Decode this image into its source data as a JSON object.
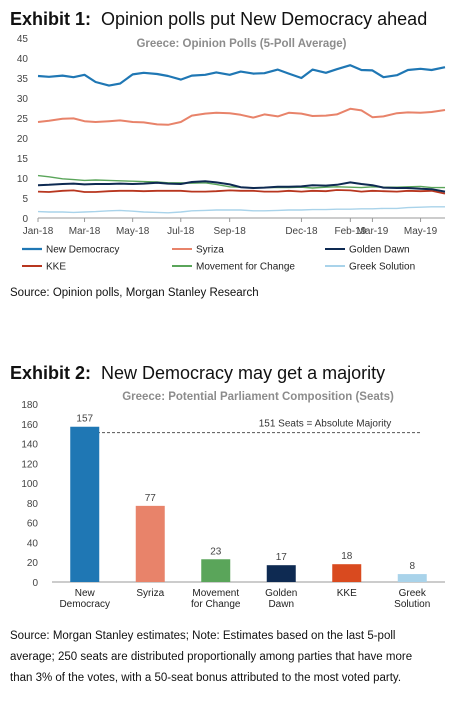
{
  "exhibit1": {
    "label": "Exhibit 1:",
    "heading": "Opinion polls put New Democracy ahead",
    "source": "Source: Opinion polls, Morgan Stanley Research"
  },
  "exhibit2": {
    "label": "Exhibit 2:",
    "heading": "New Democracy may get a majority",
    "source_lines": [
      "Source: Morgan Stanley estimates; Note: Estimates based on the last 5-poll",
      "average; 250 seats are distributed proportionally among parties that have more",
      "than 3% of the votes, with a 50-seat bonus attributed to the most voted party."
    ]
  },
  "chart_data": [
    {
      "type": "line",
      "title": "Greece: Opinion Polls (5-Poll Average)",
      "ylim": [
        0,
        45
      ],
      "yticks": [
        0,
        5,
        10,
        15,
        20,
        25,
        30,
        35,
        40,
        45
      ],
      "xlim": [
        "2018-01-01",
        "2019-06-01"
      ],
      "xtick_labels": [
        {
          "date": "2018-01-01",
          "label": "Jan-18"
        },
        {
          "date": "2018-03-01",
          "label": "Mar-18"
        },
        {
          "date": "2018-05-01",
          "label": "May-18"
        },
        {
          "date": "2018-07-01",
          "label": "Jul-18"
        },
        {
          "date": "2018-09-01",
          "label": "Sep-18"
        },
        {
          "date": "2018-12-01",
          "label": "Dec-18"
        },
        {
          "date": "2019-02-01",
          "label": "Feb-19"
        },
        {
          "date": "2019-03-01",
          "label": "Mar-19"
        },
        {
          "date": "2019-05-01",
          "label": "May-19"
        }
      ],
      "x": [
        "2018-01-01",
        "2018-01-15",
        "2018-02-01",
        "2018-02-15",
        "2018-03-01",
        "2018-03-15",
        "2018-04-01",
        "2018-04-15",
        "2018-05-01",
        "2018-05-15",
        "2018-06-01",
        "2018-06-15",
        "2018-07-01",
        "2018-07-15",
        "2018-08-01",
        "2018-08-15",
        "2018-09-01",
        "2018-09-15",
        "2018-10-01",
        "2018-10-15",
        "2018-11-01",
        "2018-11-15",
        "2018-12-01",
        "2018-12-15",
        "2019-01-01",
        "2019-01-15",
        "2019-02-01",
        "2019-02-15",
        "2019-03-01",
        "2019-03-15",
        "2019-04-01",
        "2019-04-15",
        "2019-05-01",
        "2019-05-15",
        "2019-06-01"
      ],
      "series": [
        {
          "name": "New Democracy",
          "color": "#1f77b4",
          "width": 2.2,
          "values": [
            35.5,
            35.3,
            35.6,
            35.2,
            35.8,
            34.0,
            33.1,
            33.6,
            35.9,
            36.3,
            36.0,
            35.5,
            34.6,
            35.6,
            35.8,
            36.4,
            35.8,
            36.6,
            36.1,
            36.2,
            37.1,
            36.1,
            35.0,
            37.1,
            36.3,
            37.2,
            38.2,
            37.0,
            36.9,
            35.2,
            35.7,
            37.0,
            37.3,
            37.0,
            37.7
          ]
        },
        {
          "name": "Syriza",
          "color": "#e8836a",
          "width": 2.0,
          "values": [
            24.0,
            24.3,
            24.8,
            24.9,
            24.2,
            24.0,
            24.2,
            24.4,
            24.0,
            23.9,
            23.4,
            23.3,
            24.0,
            25.6,
            26.1,
            26.3,
            26.2,
            25.8,
            25.1,
            25.9,
            25.4,
            26.3,
            26.1,
            25.5,
            25.6,
            25.9,
            27.3,
            26.9,
            25.2,
            25.4,
            26.2,
            26.4,
            26.3,
            26.5,
            27.0
          ]
        },
        {
          "name": "Golden Dawn",
          "color": "#0e2a52",
          "width": 2.0,
          "values": [
            8.2,
            8.3,
            8.5,
            8.6,
            8.4,
            8.5,
            8.5,
            8.6,
            8.5,
            8.6,
            8.8,
            8.6,
            8.5,
            9.0,
            9.2,
            8.9,
            8.4,
            7.7,
            7.5,
            7.6,
            7.8,
            7.8,
            7.9,
            8.2,
            8.1,
            8.3,
            8.9,
            8.5,
            8.2,
            7.6,
            7.5,
            7.5,
            7.3,
            7.2,
            6.6
          ]
        },
        {
          "name": "KKE",
          "color": "#b8361f",
          "width": 1.8,
          "values": [
            6.6,
            6.5,
            6.8,
            6.9,
            6.5,
            6.5,
            6.7,
            6.8,
            6.8,
            6.7,
            6.8,
            6.8,
            6.8,
            6.6,
            6.6,
            6.7,
            6.9,
            6.8,
            6.8,
            6.6,
            6.6,
            6.8,
            6.6,
            6.8,
            6.7,
            7.0,
            6.9,
            6.6,
            6.8,
            6.7,
            6.6,
            6.8,
            6.7,
            6.8,
            6.1
          ]
        },
        {
          "name": "Movement for Change",
          "color": "#5aa55a",
          "width": 1.4,
          "values": [
            10.6,
            10.3,
            9.8,
            9.6,
            9.4,
            9.5,
            9.4,
            9.3,
            9.2,
            9.1,
            9.0,
            8.8,
            8.8,
            8.7,
            8.8,
            8.4,
            7.8,
            7.7,
            7.5,
            7.6,
            7.6,
            7.6,
            7.7,
            7.5,
            7.7,
            7.8,
            7.7,
            7.6,
            7.8,
            7.7,
            7.7,
            7.8,
            7.9,
            7.6,
            7.6
          ]
        },
        {
          "name": "Greek Solution",
          "color": "#a9d3ea",
          "width": 1.4,
          "values": [
            1.6,
            1.5,
            1.5,
            1.4,
            1.5,
            1.6,
            1.8,
            1.9,
            1.7,
            1.5,
            1.4,
            1.3,
            1.5,
            1.8,
            1.9,
            2.0,
            2.0,
            2.0,
            1.8,
            1.8,
            1.9,
            2.0,
            2.0,
            2.1,
            2.1,
            2.2,
            2.2,
            2.3,
            2.3,
            2.4,
            2.4,
            2.6,
            2.7,
            2.8,
            2.8
          ]
        }
      ],
      "legend_position": "bottom"
    },
    {
      "type": "bar",
      "title": "Greece: Potential Parliament Composition (Seats)",
      "ylim": [
        0,
        180
      ],
      "yticks": [
        0,
        20,
        40,
        60,
        80,
        100,
        120,
        140,
        160,
        180
      ],
      "categories": [
        "New\nDemocracy",
        "Syriza",
        "Movement\nfor Change",
        "Golden\nDawn",
        "KKE",
        "Greek\nSolution"
      ],
      "values": [
        157,
        77,
        23,
        17,
        18,
        8
      ],
      "colors": [
        "#1f77b4",
        "#e8836a",
        "#5aa55a",
        "#0e2a52",
        "#d94a1f",
        "#a9d3ea"
      ],
      "reference_line": {
        "value": 151,
        "label": "151 Seats = Absolute Majority"
      }
    }
  ]
}
